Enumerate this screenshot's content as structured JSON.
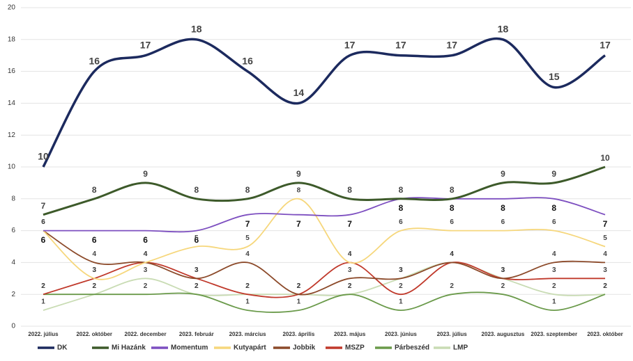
{
  "chart_data": {
    "type": "line",
    "categories": [
      "2022. július",
      "2022. október",
      "2022. december",
      "2023. február",
      "2023. március",
      "2023. április",
      "2023. május",
      "2023. június",
      "2023. július",
      "2023. augusztus",
      "2023. szeptember",
      "2023. október"
    ],
    "series": [
      {
        "name": "DK",
        "color": "#1c2a5e",
        "values": [
          10,
          16,
          17,
          18,
          16,
          14,
          17,
          17,
          17,
          18,
          15,
          17
        ]
      },
      {
        "name": "Mi Hazánk",
        "color": "#3d5a2a",
        "values": [
          7,
          8,
          9,
          8,
          8,
          9,
          8,
          8,
          8,
          9,
          9,
          10
        ]
      },
      {
        "name": "Momentum",
        "color": "#7d4fc0",
        "values": [
          6,
          6,
          6,
          6,
          7,
          7,
          7,
          8,
          8,
          8,
          8,
          7
        ]
      },
      {
        "name": "Kutyapárt",
        "color": "#f6d77c",
        "values": [
          6,
          3,
          4,
          5,
          5,
          8,
          4,
          6,
          6,
          6,
          6,
          5
        ]
      },
      {
        "name": "Jobbik",
        "color": "#8c4a2a",
        "values": [
          6,
          4,
          4,
          3,
          4,
          2,
          3,
          3,
          4,
          3,
          4,
          4
        ]
      },
      {
        "name": "MSZP",
        "color": "#c0392b",
        "values": [
          2,
          3,
          4,
          3,
          2,
          2,
          4,
          2,
          4,
          3,
          3,
          3
        ]
      },
      {
        "name": "Párbeszéd",
        "color": "#6a9a4a",
        "values": [
          2,
          2,
          2,
          2,
          1,
          1,
          2,
          1,
          2,
          2,
          1,
          2
        ]
      },
      {
        "name": "LMP",
        "color": "#c9dcb4",
        "values": [
          1,
          2,
          3,
          2,
          2,
          2,
          2,
          3,
          4,
          3,
          2,
          2
        ]
      }
    ],
    "ylim": [
      0,
      20
    ],
    "yticks": [
      0,
      2,
      4,
      6,
      8,
      10,
      12,
      14,
      16,
      18,
      20
    ],
    "grid": true,
    "smooth": true,
    "data_labels": true,
    "legend": "bottom"
  }
}
